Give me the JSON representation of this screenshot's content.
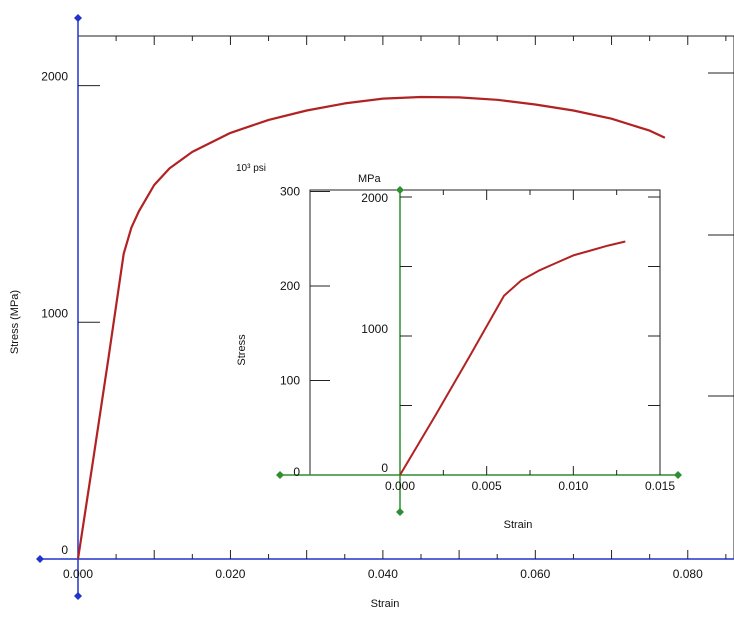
{
  "chart_data": [
    {
      "type": "line",
      "title": "",
      "xlabel": "Strain",
      "ylabel": "Stress (MPa)",
      "xlim": [
        0,
        0.085
      ],
      "ylim": [
        0,
        2200
      ],
      "xticks": [
        0,
        0.02,
        0.04,
        0.06,
        0.08
      ],
      "xtick_labels": [
        "0.000",
        "0.020",
        "0.040",
        "0.060",
        "0.080"
      ],
      "yticks": [
        0,
        1000,
        2000
      ],
      "ytick_labels": [
        "0",
        "1000",
        "2000"
      ],
      "grid": false,
      "series": [
        {
          "x": [
            0,
            0.002,
            0.004,
            0.006,
            0.007,
            0.008,
            0.01,
            0.012,
            0.015,
            0.02,
            0.025,
            0.03,
            0.035,
            0.04,
            0.045,
            0.05,
            0.055,
            0.06,
            0.065,
            0.07,
            0.075,
            0.077
          ],
          "y": [
            0,
            420,
            850,
            1290,
            1400,
            1470,
            1580,
            1650,
            1720,
            1800,
            1855,
            1895,
            1925,
            1945,
            1952,
            1950,
            1940,
            1920,
            1895,
            1860,
            1810,
            1780
          ]
        }
      ]
    },
    {
      "type": "line",
      "title": "",
      "xlabel": "Strain",
      "ylabel": "Stress",
      "left_unit": "10³ psi",
      "right_unit": "MPa",
      "xlim": [
        -0.0055,
        0.015
      ],
      "ylim": [
        0,
        2000
      ],
      "xticks": [
        0,
        0.005,
        0.01,
        0.015
      ],
      "xtick_labels": [
        "0.000",
        "0.005",
        "0.010",
        "0.015"
      ],
      "yticks_mpa": [
        0,
        1000,
        2000
      ],
      "ytick_labels_mpa": [
        "0",
        "1000",
        "2000"
      ],
      "yticks_ksi": [
        0,
        100,
        200,
        300
      ],
      "ytick_labels_ksi": [
        "0",
        "100",
        "200",
        "300"
      ],
      "grid": false,
      "series": [
        {
          "x": [
            0,
            0.002,
            0.004,
            0.006,
            0.007,
            0.008,
            0.009,
            0.01,
            0.011,
            0.012,
            0.013
          ],
          "y": [
            0,
            420,
            850,
            1290,
            1400,
            1470,
            1525,
            1580,
            1615,
            1650,
            1680
          ]
        }
      ]
    }
  ],
  "colors": {
    "curve": "#b22222",
    "main_axis": "#2233cc",
    "inset_axis": "#2f8f2f",
    "frame": "#222222"
  }
}
